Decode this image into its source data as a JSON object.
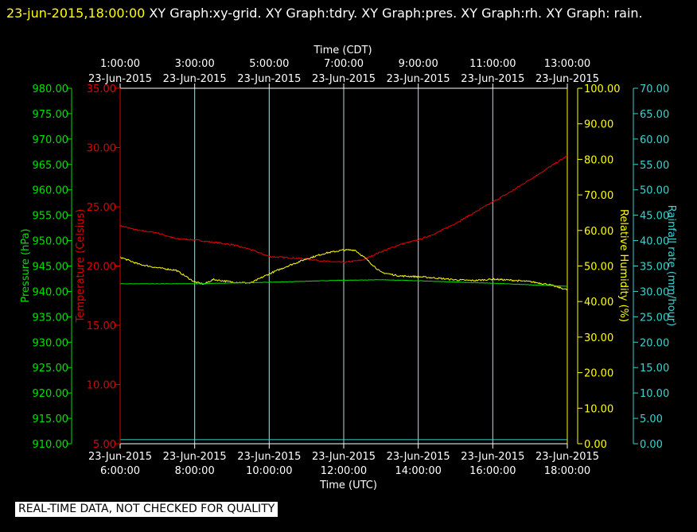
{
  "header": {
    "timestamp": "23-jun-2015,18:00:00",
    "graphs_text": " XY Graph:xy-grid.  XY Graph:tdry.  XY Graph:pres.  XY Graph:rh.  XY Graph: rain."
  },
  "quality_note": "REAL-TIME DATA, NOT CHECKED FOR QUALITY",
  "colors": {
    "pressure": "#00e000",
    "temperature": "#e00000",
    "humidity": "#ffff00",
    "rain": "#40d0d0",
    "grid": "#b4dcdc",
    "time_axis": "#ffffff"
  },
  "chart_data": {
    "type": "line",
    "x_top_label": "Time (CDT)",
    "x_bottom_label": "Time (UTC)",
    "x_range_utc_hours": [
      6,
      18
    ],
    "grid_hours_utc": [
      8,
      10,
      12,
      14,
      16
    ],
    "top_ticks": [
      {
        "utc": 6,
        "time": "1:00:00",
        "date": "23-Jun-2015"
      },
      {
        "utc": 8,
        "time": "3:00:00",
        "date": "23-Jun-2015"
      },
      {
        "utc": 10,
        "time": "5:00:00",
        "date": "23-Jun-2015"
      },
      {
        "utc": 12,
        "time": "7:00:00",
        "date": "23-Jun-2015"
      },
      {
        "utc": 14,
        "time": "9:00:00",
        "date": "23-Jun-2015"
      },
      {
        "utc": 16,
        "time": "11:00:00",
        "date": "23-Jun-2015"
      },
      {
        "utc": 18,
        "time": "13:00:00",
        "date": "23-Jun-2015"
      }
    ],
    "bottom_ticks": [
      {
        "utc": 6,
        "date": "23-Jun-2015",
        "time": "6:00:00"
      },
      {
        "utc": 8,
        "date": "23-Jun-2015",
        "time": "8:00:00"
      },
      {
        "utc": 10,
        "date": "23-Jun-2015",
        "time": "10:00:00"
      },
      {
        "utc": 12,
        "date": "23-Jun-2015",
        "time": "12:00:00"
      },
      {
        "utc": 14,
        "date": "23-Jun-2015",
        "time": "14:00:00"
      },
      {
        "utc": 16,
        "date": "23-Jun-2015",
        "time": "16:00:00"
      },
      {
        "utc": 18,
        "date": "23-Jun-2015",
        "time": "18:00:00"
      }
    ],
    "axes": {
      "pressure": {
        "label": "Pressure (hPa)",
        "range": [
          910,
          980
        ],
        "ticks": [
          "980.00",
          "975.00",
          "970.00",
          "965.00",
          "960.00",
          "955.00",
          "950.00",
          "945.00",
          "940.00",
          "935.00",
          "930.00",
          "925.00",
          "920.00",
          "915.00",
          "910.00"
        ]
      },
      "temperature": {
        "label": "Temperature (Celsius)",
        "range": [
          5,
          35
        ],
        "ticks": [
          "35.00",
          "30.00",
          "25.00",
          "20.00",
          "15.00",
          "10.00",
          "5.00"
        ]
      },
      "humidity": {
        "label": "Relative Humidity (%)",
        "range": [
          0,
          100
        ],
        "ticks": [
          "100.00",
          "90.00",
          "80.00",
          "70.00",
          "60.00",
          "50.00",
          "40.00",
          "30.00",
          "20.00",
          "10.00",
          "0.00"
        ]
      },
      "rain": {
        "label": "Rainfall rate (mm/hour)",
        "range": [
          0,
          70
        ],
        "ticks": [
          "70.00",
          "65.00",
          "60.00",
          "55.00",
          "50.00",
          "45.00",
          "40.00",
          "35.00",
          "30.00",
          "25.00",
          "20.00",
          "15.00",
          "10.00",
          "5.00",
          "0.00"
        ]
      }
    },
    "series": [
      {
        "name": "tdry",
        "axis": "temperature",
        "x": [
          6.0,
          6.5,
          7.0,
          7.5,
          8.0,
          8.5,
          9.0,
          9.5,
          10.0,
          10.5,
          11.0,
          11.5,
          12.0,
          12.5,
          13.0,
          13.5,
          14.0,
          14.5,
          15.0,
          15.5,
          16.0,
          16.5,
          17.0,
          17.5,
          18.0
        ],
        "y": [
          23.4,
          23.0,
          22.8,
          22.3,
          22.2,
          22.0,
          21.8,
          21.4,
          20.8,
          20.7,
          20.6,
          20.4,
          20.3,
          20.5,
          21.2,
          21.8,
          22.2,
          22.8,
          23.6,
          24.5,
          25.4,
          26.3,
          27.3,
          28.3,
          29.3
        ]
      },
      {
        "name": "rh",
        "axis": "humidity",
        "x": [
          6.0,
          6.5,
          7.0,
          7.5,
          8.0,
          8.25,
          8.5,
          9.0,
          9.5,
          10.0,
          10.5,
          11.0,
          11.5,
          12.0,
          12.3,
          12.6,
          13.0,
          13.5,
          14.0,
          14.5,
          15.0,
          15.5,
          16.0,
          16.5,
          17.0,
          17.5,
          18.0
        ],
        "y": [
          52.5,
          50.5,
          49.5,
          48.8,
          45.5,
          44.9,
          46.2,
          45.5,
          45.2,
          47.8,
          50.0,
          52.0,
          53.6,
          54.5,
          54.5,
          52.0,
          48.2,
          47.2,
          47.0,
          46.6,
          46.1,
          45.9,
          46.3,
          46.0,
          45.6,
          44.8,
          43.3
        ]
      },
      {
        "name": "pres",
        "axis": "pressure",
        "x": [
          6.0,
          8.0,
          10.0,
          12.0,
          13.0,
          14.0,
          16.0,
          18.0
        ],
        "y": [
          941.5,
          941.5,
          941.8,
          942.2,
          942.3,
          942.1,
          941.6,
          941.0
        ]
      },
      {
        "name": "rain",
        "axis": "rain",
        "x": [
          6.0,
          18.0
        ],
        "y": [
          0.8,
          0.8
        ]
      }
    ]
  }
}
